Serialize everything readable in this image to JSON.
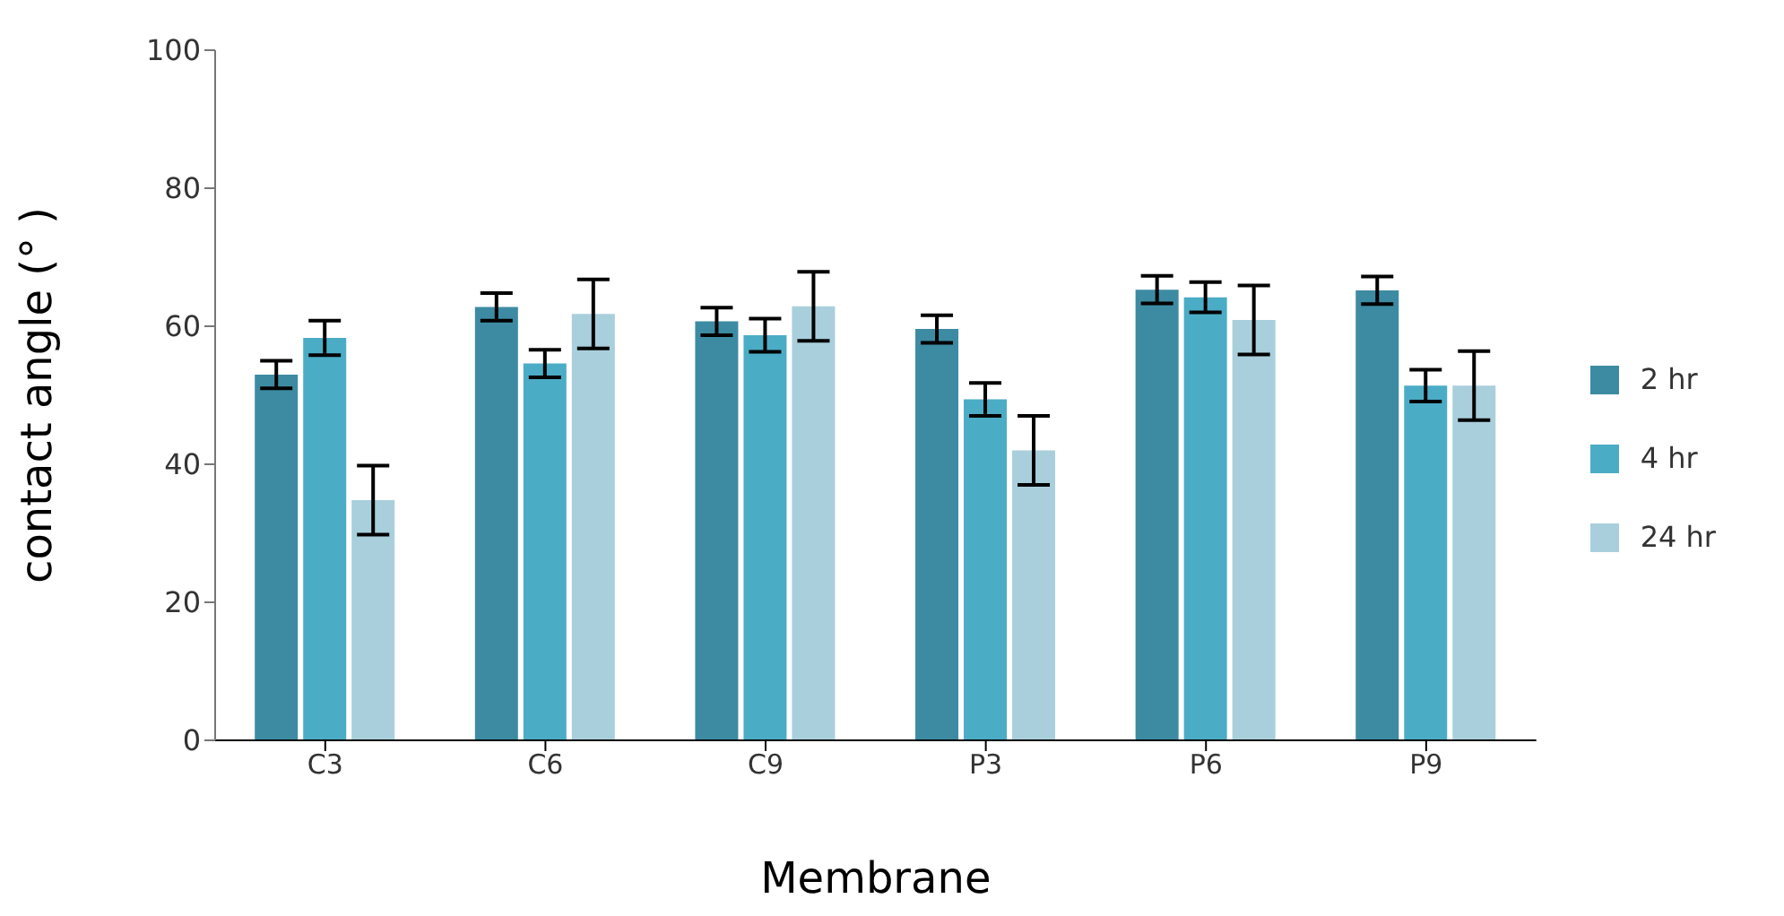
{
  "chart_data": {
    "type": "bar",
    "xlabel": "Membrane",
    "ylabel": "contact angle (° )",
    "categories": [
      "C3",
      "C6",
      "C9",
      "P3",
      "P6",
      "P9"
    ],
    "series": [
      {
        "name": "2 hr",
        "color": "#3d8ba3",
        "values": [
          53,
          62.8,
          60.7,
          59.6,
          65.3,
          65.2
        ],
        "errors": [
          2,
          2,
          2,
          2,
          2,
          2
        ]
      },
      {
        "name": "4 hr",
        "color": "#4bacc6",
        "values": [
          58.3,
          54.6,
          58.7,
          49.4,
          64.2,
          51.4
        ],
        "errors": [
          2.5,
          2,
          2.4,
          2.4,
          2.2,
          2.3
        ]
      },
      {
        "name": "24 hr",
        "color": "#a9cfdc",
        "values": [
          34.8,
          61.8,
          62.9,
          42,
          60.9,
          51.4
        ],
        "errors": [
          5,
          5,
          5,
          5,
          5,
          5
        ]
      }
    ],
    "ylim": [
      0,
      100
    ],
    "yticks": [
      0,
      20,
      40,
      60,
      80,
      100
    ],
    "grid": false,
    "legend": "right"
  }
}
